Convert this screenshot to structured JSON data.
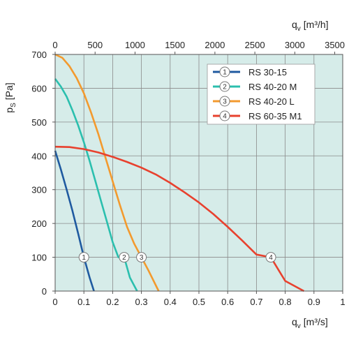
{
  "chart_data": {
    "type": "line",
    "xlabel_main": "q",
    "xlabel_sub": "v",
    "xlabel_unit": "[m³/s]",
    "x2label_main": "q",
    "x2label_sub": "v",
    "x2label_unit": "[m³/h]",
    "ylabel_main": "p",
    "ylabel_sub": "S",
    "ylabel_unit": "[Pa]",
    "xlim": [
      0,
      1
    ],
    "ylim": [
      0,
      700
    ],
    "x2lim": [
      0,
      3600
    ],
    "x_ticks": [
      "0",
      "0.1",
      "0.2",
      "0.3",
      "0.4",
      "0.5",
      "0.6",
      "0.7",
      "0.8",
      "0.9",
      "1"
    ],
    "y_ticks": [
      "0",
      "100",
      "200",
      "300",
      "400",
      "500",
      "600",
      "700"
    ],
    "x2_ticks": [
      "0",
      "500",
      "1000",
      "1500",
      "2000",
      "2500",
      "3000",
      "3500"
    ],
    "grid": true,
    "legend_position": "top-right",
    "background_color": "#d6ece9",
    "series": [
      {
        "marker": "1",
        "name": "RS 30-15",
        "color": "#1f5aa0",
        "marker_at": [
          0.1,
          100
        ],
        "points": [
          [
            0,
            415
          ],
          [
            0.02,
            360
          ],
          [
            0.04,
            300
          ],
          [
            0.06,
            238
          ],
          [
            0.08,
            170
          ],
          [
            0.1,
            100
          ],
          [
            0.12,
            40
          ],
          [
            0.135,
            0
          ]
        ]
      },
      {
        "marker": "2",
        "name": "RS 40-20 M",
        "color": "#2bbfae",
        "marker_at": [
          0.24,
          100
        ],
        "points": [
          [
            0,
            628
          ],
          [
            0.02,
            605
          ],
          [
            0.04,
            575
          ],
          [
            0.06,
            535
          ],
          [
            0.08,
            490
          ],
          [
            0.1,
            440
          ],
          [
            0.12,
            385
          ],
          [
            0.14,
            325
          ],
          [
            0.16,
            265
          ],
          [
            0.18,
            205
          ],
          [
            0.2,
            145
          ],
          [
            0.22,
            100
          ],
          [
            0.24,
            100
          ],
          [
            0.26,
            40
          ],
          [
            0.285,
            0
          ]
        ]
      },
      {
        "marker": "3",
        "name": "RS 40-20 L",
        "color": "#f39a2e",
        "marker_at": [
          0.3,
          100
        ],
        "points": [
          [
            0,
            700
          ],
          [
            0.025,
            690
          ],
          [
            0.05,
            665
          ],
          [
            0.075,
            630
          ],
          [
            0.1,
            585
          ],
          [
            0.125,
            528
          ],
          [
            0.15,
            465
          ],
          [
            0.175,
            395
          ],
          [
            0.2,
            325
          ],
          [
            0.225,
            255
          ],
          [
            0.25,
            190
          ],
          [
            0.275,
            140
          ],
          [
            0.3,
            100
          ],
          [
            0.325,
            60
          ],
          [
            0.36,
            0
          ]
        ]
      },
      {
        "marker": "4",
        "name": "RS 60-35 M1",
        "color": "#e8412e",
        "marker_at": [
          0.75,
          100
        ],
        "points": [
          [
            0,
            427
          ],
          [
            0.05,
            426
          ],
          [
            0.1,
            420
          ],
          [
            0.15,
            410
          ],
          [
            0.2,
            397
          ],
          [
            0.25,
            382
          ],
          [
            0.3,
            365
          ],
          [
            0.35,
            345
          ],
          [
            0.4,
            320
          ],
          [
            0.45,
            292
          ],
          [
            0.5,
            262
          ],
          [
            0.55,
            228
          ],
          [
            0.6,
            190
          ],
          [
            0.65,
            150
          ],
          [
            0.7,
            108
          ],
          [
            0.75,
            100
          ],
          [
            0.8,
            30
          ],
          [
            0.865,
            0
          ]
        ]
      }
    ]
  }
}
